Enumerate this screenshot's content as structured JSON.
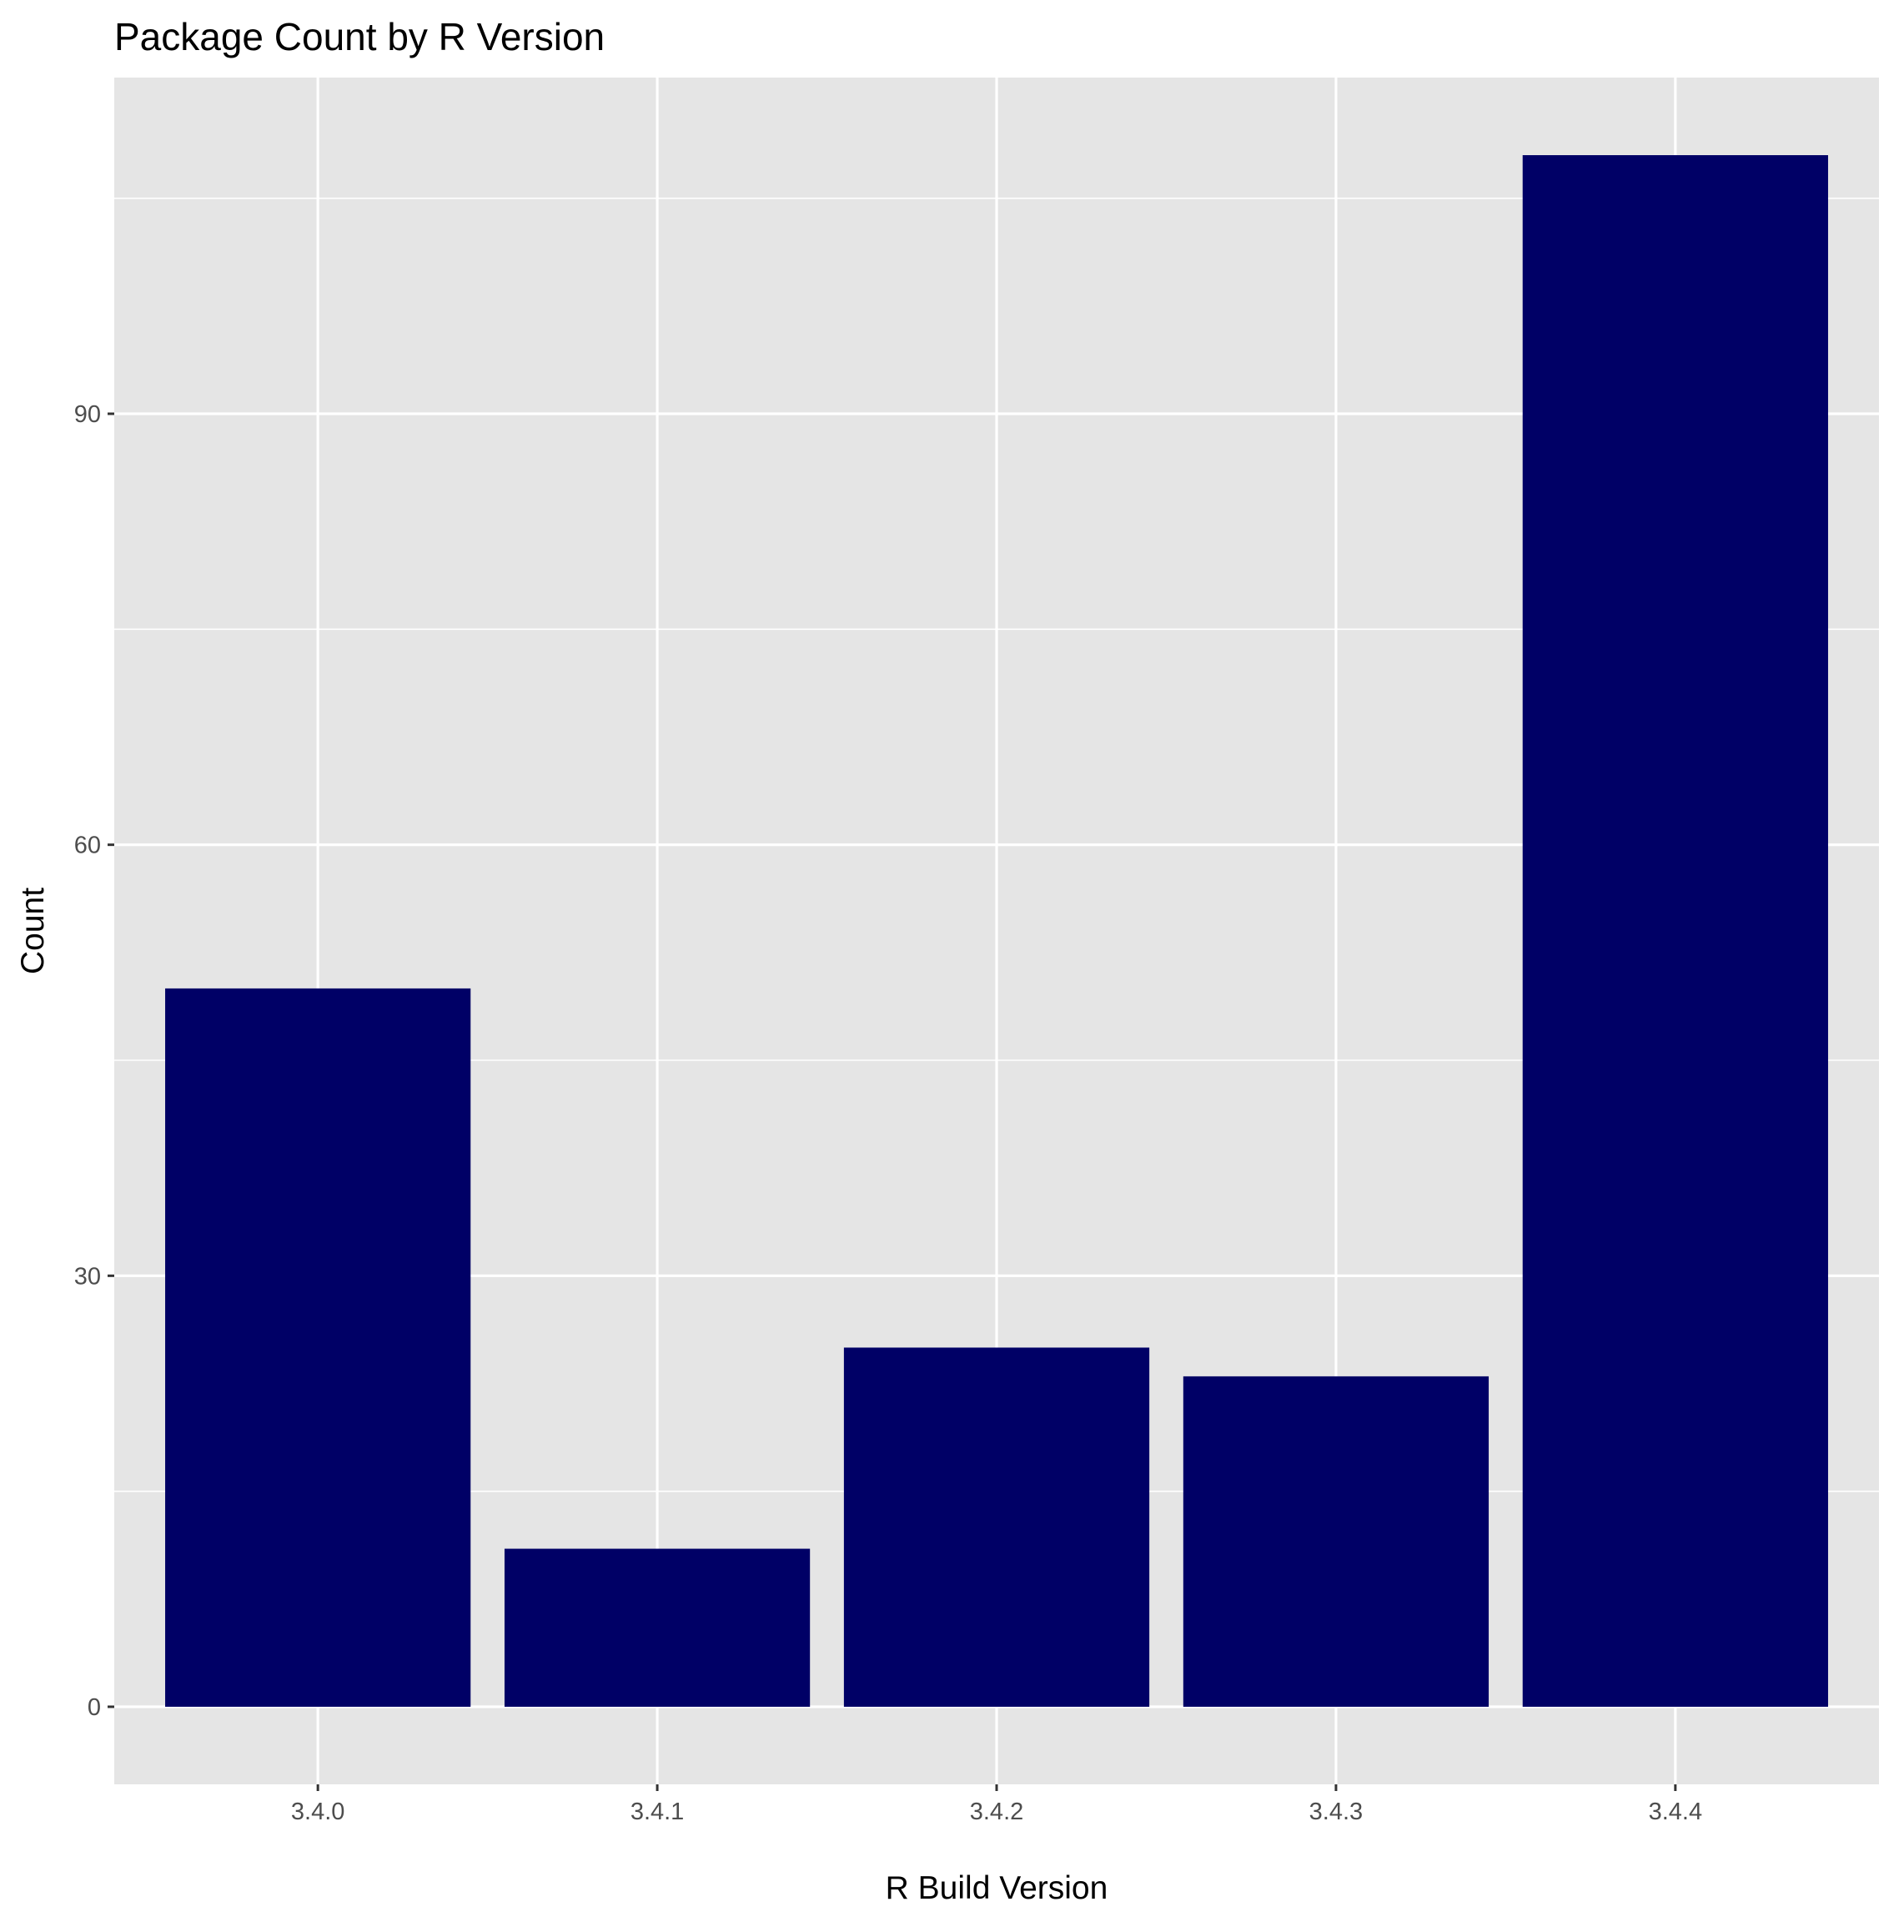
{
  "chart_data": {
    "type": "bar",
    "title": "Package Count by R Version",
    "xlabel": "R Build Version",
    "ylabel": "Count",
    "categories": [
      "3.4.0",
      "3.4.1",
      "3.4.2",
      "3.4.3",
      "3.4.4"
    ],
    "values": [
      50,
      11,
      25,
      23,
      108
    ],
    "ylim": [
      -5.4,
      113.4
    ],
    "yticks": [
      0,
      30,
      60,
      90
    ],
    "yminor": [
      15,
      45,
      75,
      105
    ],
    "yticklabels": [
      "0",
      "30",
      "60",
      "90"
    ],
    "grid": true,
    "legend": "none",
    "colors": {
      "bar": "#000066",
      "panel": "#e5e5e5",
      "grid": "#ffffff",
      "tick_label": "#4d4d4d"
    }
  }
}
